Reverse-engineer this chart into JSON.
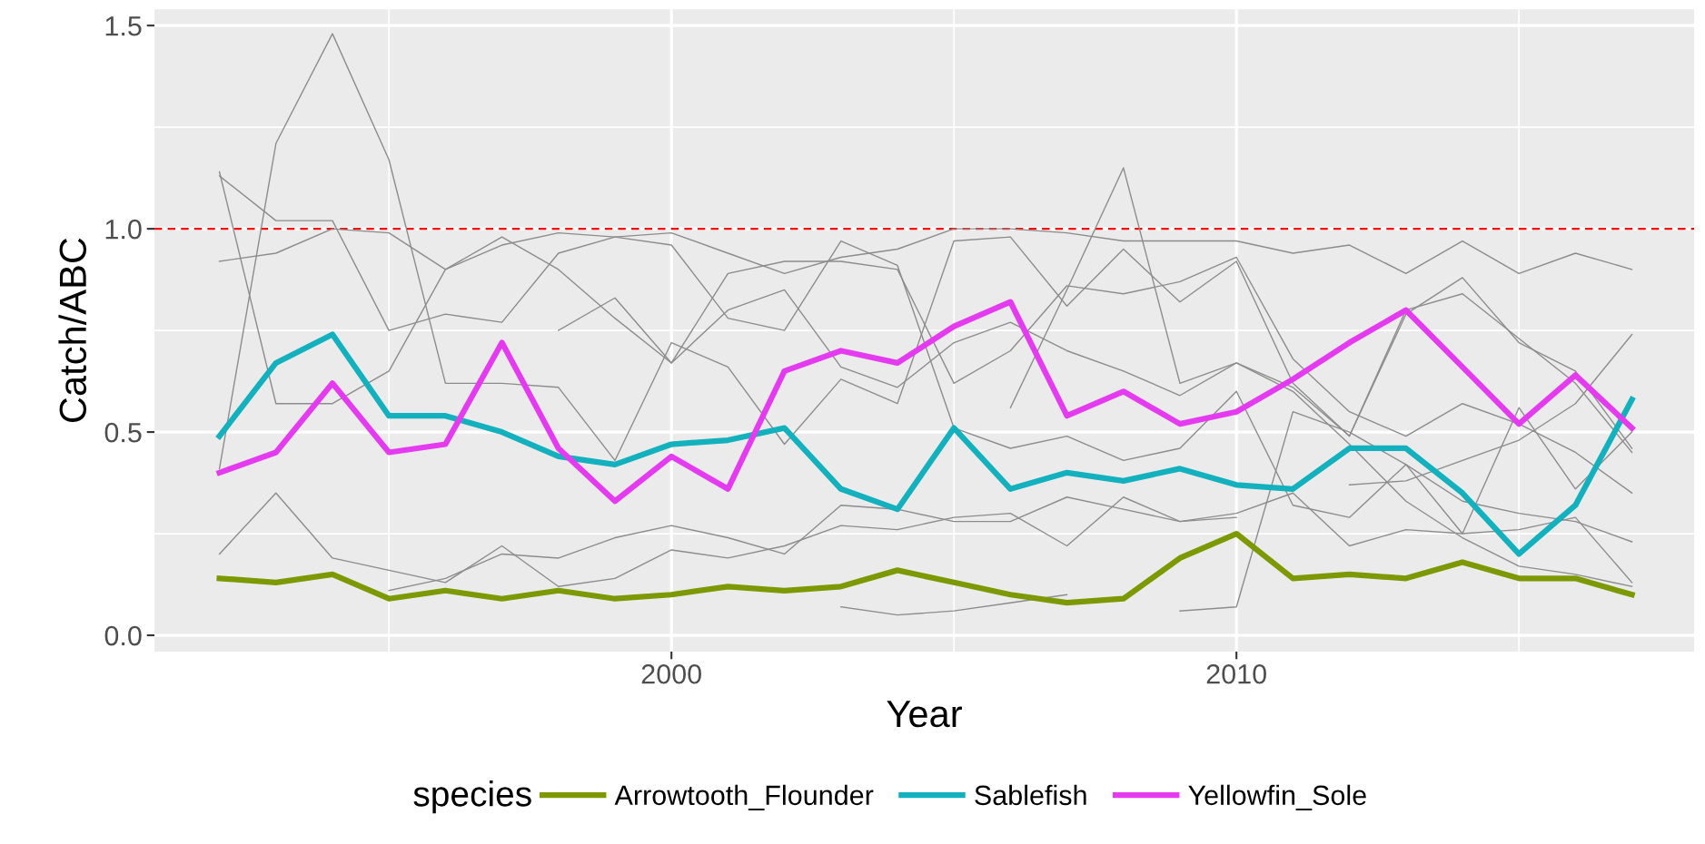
{
  "chart_data": {
    "type": "line",
    "xlabel": "Year",
    "ylabel": "Catch/ABC",
    "legend_title": "species",
    "x": [
      1992,
      1993,
      1994,
      1995,
      1996,
      1997,
      1998,
      1999,
      2000,
      2001,
      2002,
      2003,
      2004,
      2005,
      2006,
      2007,
      2008,
      2009,
      2010,
      2011,
      2012,
      2013,
      2014,
      2015,
      2016,
      2017
    ],
    "xlim": [
      1990.85,
      2018.1
    ],
    "xticks": [
      2000,
      2010
    ],
    "ylim": [
      -0.04,
      1.54
    ],
    "yticks": [
      {
        "value": 0,
        "label": "0.0"
      },
      0.5,
      {
        "value": 1,
        "label": "1.0"
      },
      1.5
    ],
    "grid": true,
    "legend": "bottom",
    "marker": "none",
    "line_style": "solid",
    "ref_lines": [
      {
        "axis": "y",
        "value": 1.0,
        "color": "#ff0000",
        "line_style": "dashed"
      }
    ],
    "series": [
      {
        "color": "#8c8c8c",
        "values": [
          0.41,
          1.21,
          1.48,
          1.17,
          0.62,
          0.62,
          0.61,
          0.43,
          0.72,
          0.66,
          0.47,
          0.63,
          0.57,
          0.97,
          0.98,
          0.81,
          0.95,
          0.82,
          0.92,
          0.62,
          0.49,
          0.8,
          0.84,
          0.73,
          0.62,
          0.45
        ]
      },
      {
        "color": "#8c8c8c",
        "values": [
          1.14,
          0.57,
          0.57,
          0.65,
          0.9,
          0.98,
          0.9,
          0.78,
          0.67,
          0.89,
          0.92,
          0.92,
          0.9,
          0.62,
          0.7,
          0.86,
          0.84,
          0.87,
          0.93,
          0.68,
          0.55,
          0.49,
          0.57,
          0.52,
          0.45,
          0.35
        ]
      },
      {
        "color": "#8c8c8c",
        "values": [
          1.13,
          1.02,
          1.02,
          0.75,
          0.79,
          0.77,
          0.94,
          0.98,
          0.96,
          0.78,
          0.75,
          0.97,
          0.91,
          0.51,
          0.46,
          0.49,
          0.43,
          0.46,
          0.6,
          0.32,
          0.29,
          0.42,
          0.33,
          0.3,
          0.28,
          0.23
        ]
      },
      {
        "color": "#8c8c8c",
        "values": [
          0.92,
          0.94,
          1.0,
          0.99,
          0.9,
          0.96,
          0.99,
          0.98,
          0.99,
          0.94,
          0.89,
          0.93,
          0.95,
          1.0,
          1.0,
          0.99,
          0.97,
          0.97,
          0.97,
          0.94,
          0.96,
          0.89,
          0.97,
          0.89,
          0.94,
          0.9
        ]
      },
      {
        "color": "#8c8c8c",
        "values": [
          0.2,
          0.35,
          0.19,
          0.16,
          0.13,
          0.22,
          0.12,
          0.14,
          0.21,
          0.19,
          0.22,
          0.27,
          0.26,
          0.29,
          0.3,
          0.22,
          0.34,
          0.28,
          0.3,
          0.35,
          0.22,
          0.26,
          0.25,
          0.26,
          0.29,
          0.13
        ]
      },
      {
        "color": "#8c8c8c",
        "values": [
          null,
          null,
          null,
          0.11,
          0.14,
          0.2,
          0.19,
          0.24,
          0.27,
          0.24,
          0.2,
          0.32,
          0.31,
          0.28,
          0.28,
          0.34,
          0.31,
          0.28,
          0.29,
          null,
          0.37,
          0.38,
          0.43,
          0.48,
          0.57,
          0.74
        ]
      },
      {
        "color": "#8c8c8c",
        "values": [
          null,
          null,
          null,
          null,
          null,
          null,
          0.75,
          0.83,
          0.67,
          0.8,
          0.85,
          0.66,
          0.61,
          0.72,
          0.77,
          0.7,
          0.65,
          0.59,
          0.67,
          0.61,
          0.49,
          0.79,
          0.88,
          0.72,
          0.65,
          0.46
        ]
      },
      {
        "color": "#8c8c8c",
        "values": [
          null,
          null,
          null,
          null,
          null,
          null,
          null,
          null,
          null,
          null,
          null,
          0.07,
          0.05,
          0.06,
          0.08,
          0.1,
          null,
          0.06,
          0.07,
          0.55,
          0.5,
          0.42,
          0.25,
          0.56,
          0.36,
          0.5
        ]
      },
      {
        "color": "#8c8c8c",
        "values": [
          null,
          null,
          null,
          null,
          null,
          null,
          null,
          null,
          null,
          null,
          null,
          null,
          null,
          null,
          0.56,
          0.85,
          1.15,
          0.62,
          0.67,
          0.6,
          0.47,
          0.33,
          0.24,
          0.17,
          0.15,
          0.12
        ]
      },
      {
        "name": "Arrowtooth_Flounder",
        "color": "#7c9a00",
        "values": [
          0.14,
          0.13,
          0.15,
          0.09,
          0.11,
          0.09,
          0.11,
          0.09,
          0.1,
          0.12,
          0.11,
          0.12,
          0.16,
          0.13,
          0.1,
          0.08,
          0.09,
          0.19,
          0.25,
          0.14,
          0.15,
          0.14,
          0.18,
          0.14,
          0.14,
          0.1
        ]
      },
      {
        "name": "Sablefish",
        "color": "#13b0be",
        "values": [
          0.49,
          0.67,
          0.74,
          0.54,
          0.54,
          0.5,
          0.44,
          0.42,
          0.47,
          0.48,
          0.51,
          0.36,
          0.31,
          0.51,
          0.36,
          0.4,
          0.38,
          0.41,
          0.37,
          0.36,
          0.46,
          0.46,
          0.35,
          0.2,
          0.32,
          0.58
        ]
      },
      {
        "name": "Yellowfin_Sole",
        "color": "#e53bf0",
        "values": [
          0.4,
          0.45,
          0.62,
          0.45,
          0.47,
          0.72,
          0.46,
          0.33,
          0.44,
          0.36,
          0.65,
          0.7,
          0.67,
          0.76,
          0.82,
          0.54,
          0.6,
          0.52,
          0.55,
          0.63,
          0.72,
          0.8,
          0.66,
          0.52,
          0.64,
          0.51
        ]
      }
    ]
  }
}
